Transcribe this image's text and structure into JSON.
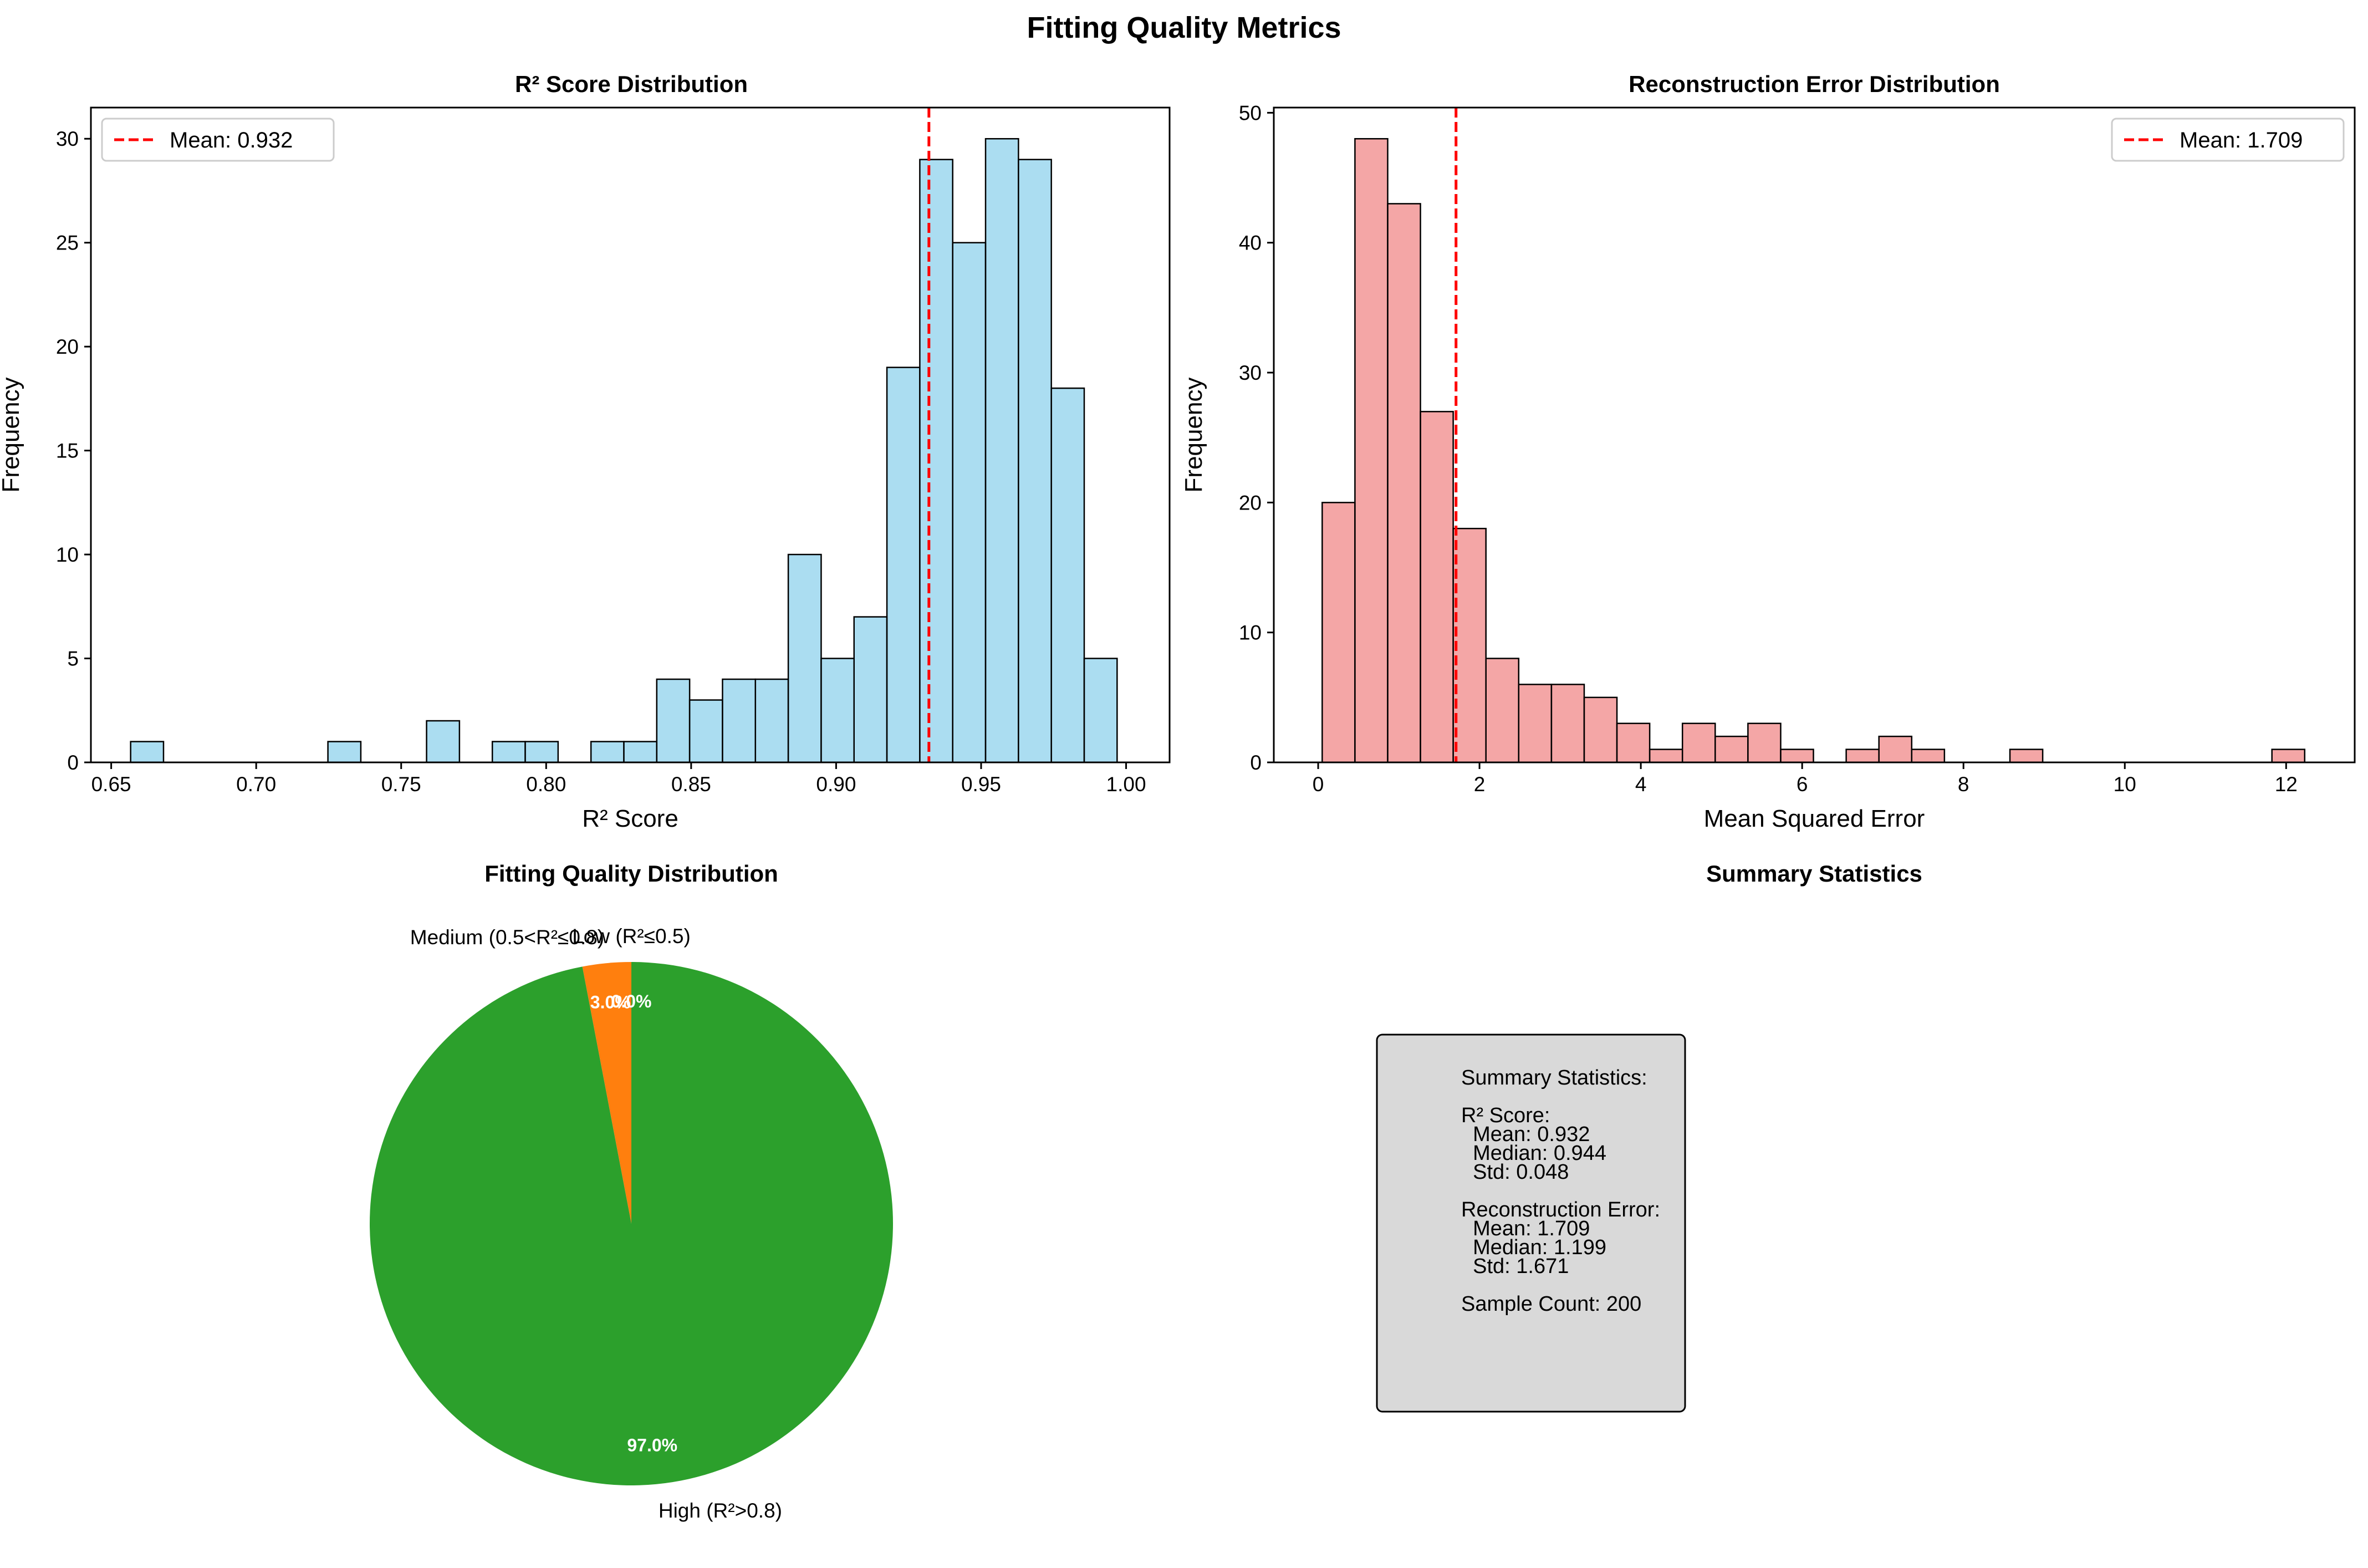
{
  "figure": {
    "title": "Fitting Quality Metrics"
  },
  "chart_data": [
    {
      "type": "bar",
      "subtype": "histogram",
      "title": "R² Score Distribution",
      "xlabel": "R² Score",
      "ylabel": "Frequency",
      "xlim": [
        0.643,
        1.015
      ],
      "ylim": [
        0,
        31.5
      ],
      "xticks": [
        0.65,
        0.7,
        0.75,
        0.8,
        0.85,
        0.9,
        0.95,
        1.0
      ],
      "xtick_labels": [
        "0.65",
        "0.70",
        "0.75",
        "0.80",
        "0.85",
        "0.90",
        "0.95",
        "1.00"
      ],
      "yticks": [
        0,
        5,
        10,
        15,
        20,
        25,
        30
      ],
      "ytick_labels": [
        "0",
        "5",
        "10",
        "15",
        "20",
        "25",
        "30"
      ],
      "bin_start": 0.6567,
      "bin_width": 0.01134,
      "values": [
        1,
        0,
        0,
        0,
        0,
        0,
        1,
        0,
        0,
        2,
        0,
        1,
        1,
        0,
        1,
        1,
        4,
        3,
        4,
        4,
        10,
        5,
        7,
        19,
        29,
        25,
        30,
        29,
        18,
        5
      ],
      "bar_color": "#87CEEB",
      "mean_line": {
        "x": 0.932,
        "label": "Mean: 0.932",
        "color": "#ff0000"
      },
      "legend": "upper-left",
      "grid": false
    },
    {
      "type": "bar",
      "subtype": "histogram",
      "title": "Reconstruction Error Distribution",
      "xlabel": "Mean Squared Error",
      "ylabel": "Frequency",
      "xlim": [
        -0.55,
        12.85
      ],
      "ylim": [
        0,
        50.4
      ],
      "xticks": [
        0,
        2,
        4,
        6,
        8,
        10,
        12
      ],
      "xtick_labels": [
        "0",
        "2",
        "4",
        "6",
        "8",
        "10",
        "12"
      ],
      "yticks": [
        0,
        10,
        20,
        30,
        40,
        50
      ],
      "ytick_labels": [
        "0",
        "10",
        "20",
        "30",
        "40",
        "50"
      ],
      "bin_start": 0.05,
      "bin_width": 0.406,
      "values": [
        20,
        48,
        43,
        27,
        18,
        8,
        6,
        6,
        5,
        3,
        1,
        3,
        2,
        3,
        1,
        0,
        1,
        2,
        1,
        0,
        0,
        1,
        0,
        0,
        0,
        0,
        0,
        0,
        0,
        1
      ],
      "bar_color": "#F08080",
      "mean_line": {
        "x": 1.709,
        "label": "Mean: 1.709",
        "color": "#ff0000"
      },
      "legend": "upper-right",
      "grid": false
    },
    {
      "type": "pie",
      "title": "Fitting Quality Distribution",
      "slices": [
        {
          "label": "Low (R²≤0.5)",
          "value": 0.0,
          "pct_label": "0.0%",
          "color": "#1f77b4"
        },
        {
          "label": "Medium (0.5<R²≤0.8)",
          "value": 3.0,
          "pct_label": "3.0%",
          "color": "#ff7f0e"
        },
        {
          "label": "High (R²>0.8)",
          "value": 97.0,
          "pct_label": "97.0%",
          "color": "#2ca02c"
        }
      ],
      "start_angle": 90
    }
  ],
  "summary": {
    "title": "Summary Statistics",
    "lines": [
      "Summary Statistics:",
      "",
      "R² Score:",
      "  Mean: 0.932",
      "  Median: 0.944",
      "  Std: 0.048",
      "",
      "Reconstruction Error:",
      "  Mean: 1.709",
      "  Median: 1.199",
      "  Std: 1.671",
      "",
      "Sample Count: 200"
    ],
    "box_color": "#d9d9d9"
  }
}
